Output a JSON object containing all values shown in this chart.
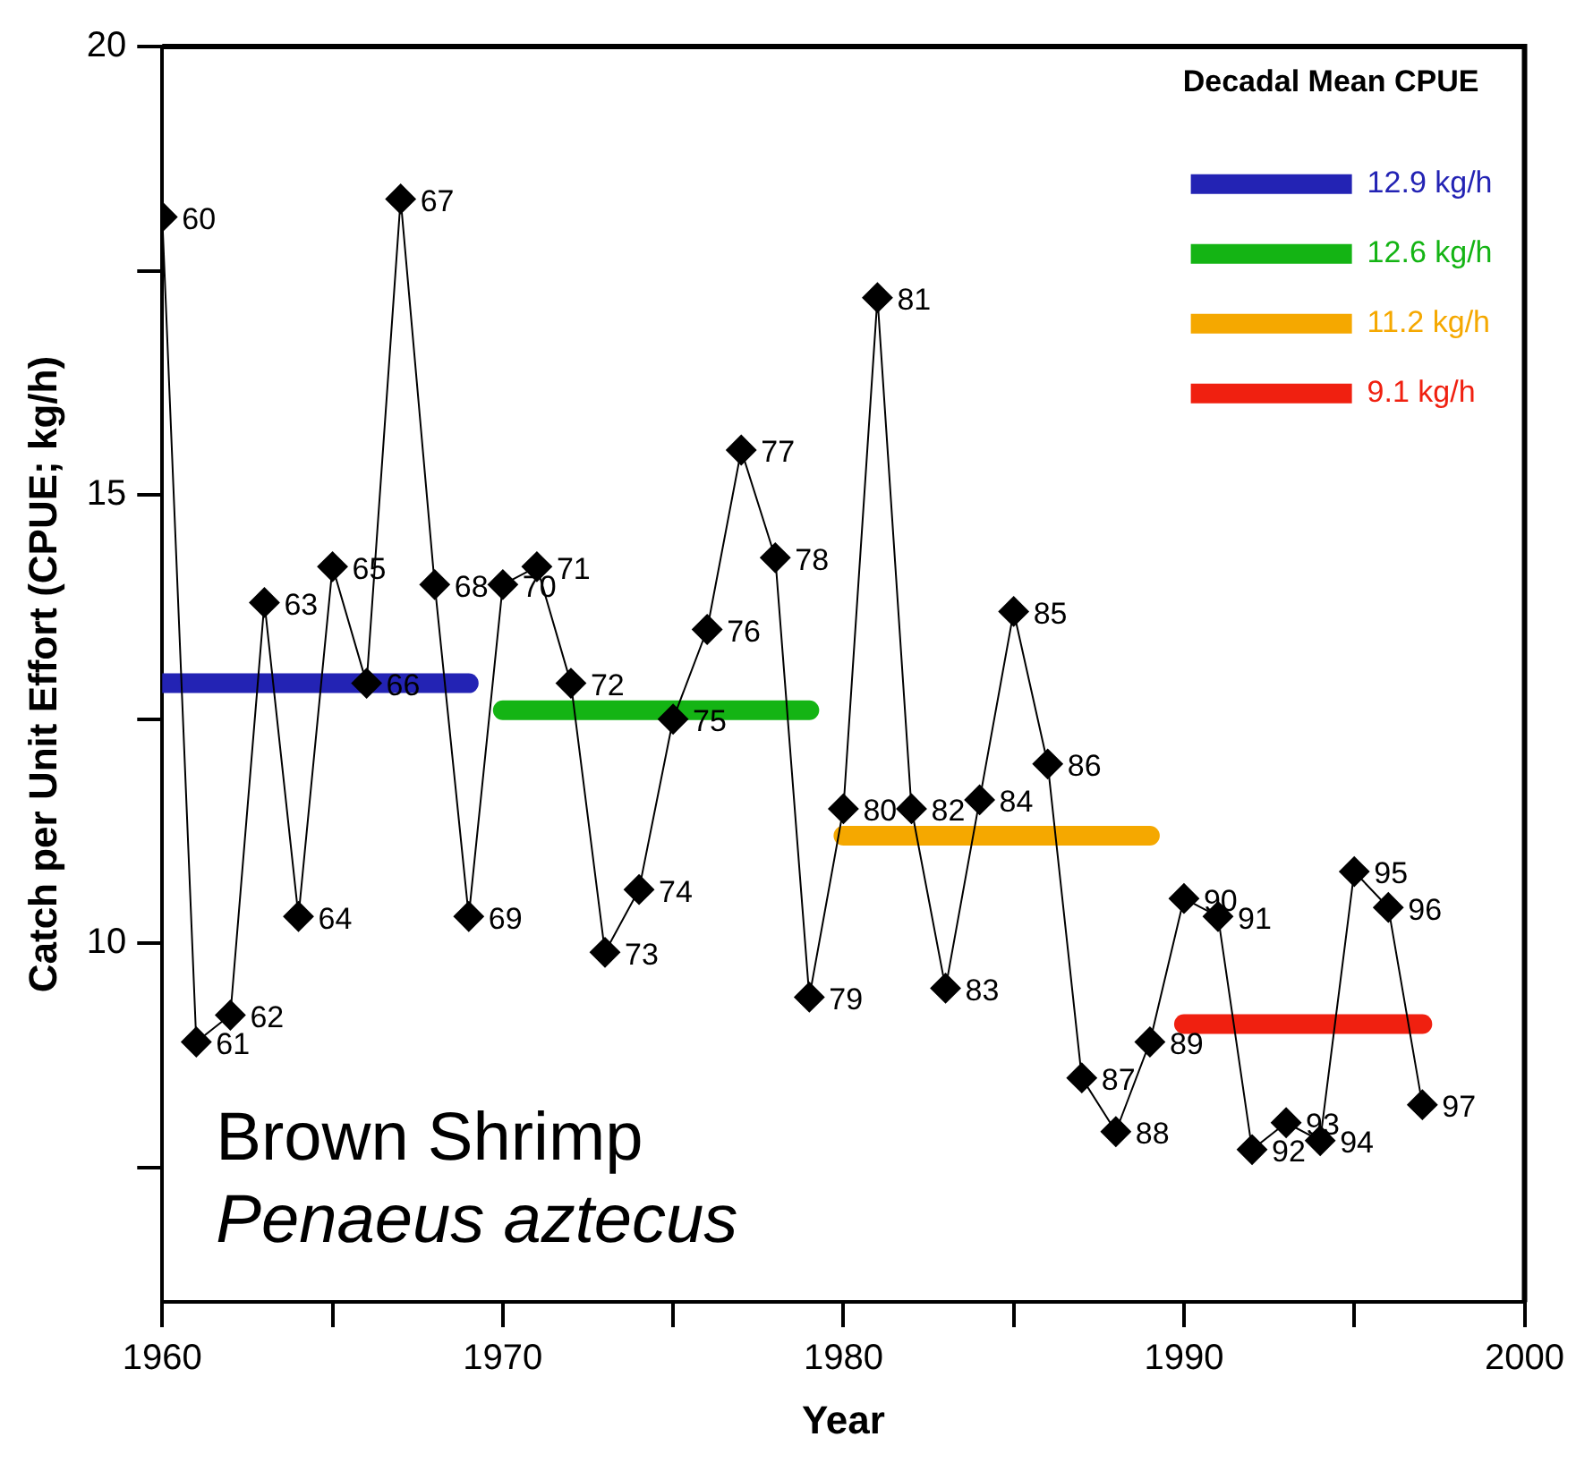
{
  "chart_data": {
    "type": "line",
    "xlabel": "Year",
    "ylabel": "Catch per Unit Effort (CPUE; kg/h)",
    "legend_title": "Decadal Mean CPUE",
    "legend": "top right",
    "grid": false,
    "marker": "diamond",
    "line_style": "solid",
    "xlim": [
      1960,
      2000
    ],
    "xticks": [
      1960,
      {
        "value": 1965,
        "label": null
      },
      1970,
      {
        "value": 1975,
        "label": null
      },
      1980,
      {
        "value": 1985,
        "label": null
      },
      1990,
      {
        "value": 1995,
        "label": null
      },
      2000
    ],
    "ylim": [
      6,
      20
    ],
    "yticks": [
      {
        "value": 7.5,
        "label": null
      },
      10,
      {
        "value": 12.5,
        "label": null
      },
      15,
      {
        "value": 17.5,
        "label": null
      },
      20
    ],
    "series": [
      {
        "color": "#000000",
        "x": [
          1960,
          1961,
          1962,
          1963,
          1964,
          1965,
          1966,
          1967,
          1968,
          1969,
          1970,
          1971,
          1972,
          1973,
          1974,
          1975,
          1976,
          1977,
          1978,
          1979,
          1980,
          1981,
          1982,
          1983,
          1984,
          1985,
          1986,
          1987,
          1988,
          1989,
          1990,
          1991,
          1992,
          1993,
          1994,
          1995,
          1996,
          1997
        ],
        "values": [
          18.1,
          8.9,
          9.2,
          13.8,
          10.3,
          14.2,
          12.9,
          18.3,
          14.0,
          10.3,
          14.0,
          14.2,
          12.9,
          9.9,
          10.6,
          12.5,
          13.5,
          15.5,
          14.3,
          9.4,
          11.5,
          17.2,
          11.5,
          9.5,
          11.6,
          13.7,
          12.0,
          8.5,
          7.9,
          8.9,
          10.5,
          10.3,
          7.7,
          8.0,
          7.8,
          10.8,
          10.4,
          8.2
        ]
      },
      {
        "name": "12.9 kg/h",
        "color": "#2323b4",
        "marker": "none",
        "x": [
          1960,
          1969
        ],
        "values": [
          12.9,
          12.9
        ]
      },
      {
        "name": "12.6 kg/h",
        "color": "#14b414",
        "marker": "none",
        "x": [
          1970,
          1979
        ],
        "values": [
          12.6,
          12.6
        ]
      },
      {
        "name": "11.2 kg/h",
        "color": "#f5a800",
        "marker": "none",
        "x": [
          1980,
          1989
        ],
        "values": [
          11.2,
          11.2
        ]
      },
      {
        "name": "9.1 kg/h",
        "color": "#f02010",
        "marker": "none",
        "x": [
          1990,
          1997
        ],
        "values": [
          9.1,
          9.1
        ]
      }
    ],
    "annotations": [
      "Brown Shrimp",
      "Penaeus aztecus",
      {
        "text": "60",
        "x": 1960,
        "y": 18.1
      },
      {
        "text": "61",
        "x": 1961,
        "y": 8.9
      },
      {
        "text": "62",
        "x": 1962,
        "y": 9.2
      },
      {
        "text": "63",
        "x": 1963,
        "y": 13.8
      },
      {
        "text": "64",
        "x": 1964,
        "y": 10.3
      },
      {
        "text": "65",
        "x": 1965,
        "y": 14.2
      },
      {
        "text": "66",
        "x": 1966,
        "y": 12.9
      },
      {
        "text": "67",
        "x": 1967,
        "y": 18.3
      },
      {
        "text": "68",
        "x": 1968,
        "y": 14.0
      },
      {
        "text": "69",
        "x": 1969,
        "y": 10.3
      },
      {
        "text": "70",
        "x": 1970,
        "y": 14.0
      },
      {
        "text": "71",
        "x": 1971,
        "y": 14.2
      },
      {
        "text": "72",
        "x": 1972,
        "y": 12.9
      },
      {
        "text": "73",
        "x": 1973,
        "y": 9.9
      },
      {
        "text": "74",
        "x": 1974,
        "y": 10.6
      },
      {
        "text": "75",
        "x": 1975,
        "y": 12.5
      },
      {
        "text": "76",
        "x": 1976,
        "y": 13.5
      },
      {
        "text": "77",
        "x": 1977,
        "y": 15.5
      },
      {
        "text": "78",
        "x": 1978,
        "y": 14.3
      },
      {
        "text": "79",
        "x": 1979,
        "y": 9.4
      },
      {
        "text": "80",
        "x": 1980,
        "y": 11.5
      },
      {
        "text": "81",
        "x": 1981,
        "y": 17.2
      },
      {
        "text": "82",
        "x": 1982,
        "y": 11.5
      },
      {
        "text": "83",
        "x": 1983,
        "y": 9.5
      },
      {
        "text": "84",
        "x": 1984,
        "y": 11.6
      },
      {
        "text": "85",
        "x": 1985,
        "y": 13.7
      },
      {
        "text": "86",
        "x": 1986,
        "y": 12.0
      },
      {
        "text": "87",
        "x": 1987,
        "y": 8.5
      },
      {
        "text": "88",
        "x": 1988,
        "y": 7.9
      },
      {
        "text": "89",
        "x": 1989,
        "y": 8.9
      },
      {
        "text": "90",
        "x": 1990,
        "y": 10.5
      },
      {
        "text": "91",
        "x": 1991,
        "y": 10.3
      },
      {
        "text": "92",
        "x": 1992,
        "y": 7.7
      },
      {
        "text": "93",
        "x": 1993,
        "y": 8.0
      },
      {
        "text": "94",
        "x": 1994,
        "y": 7.8
      },
      {
        "text": "95",
        "x": 1995,
        "y": 10.8
      },
      {
        "text": "96",
        "x": 1996,
        "y": 10.4
      },
      {
        "text": "97",
        "x": 1997,
        "y": 8.2
      }
    ]
  }
}
